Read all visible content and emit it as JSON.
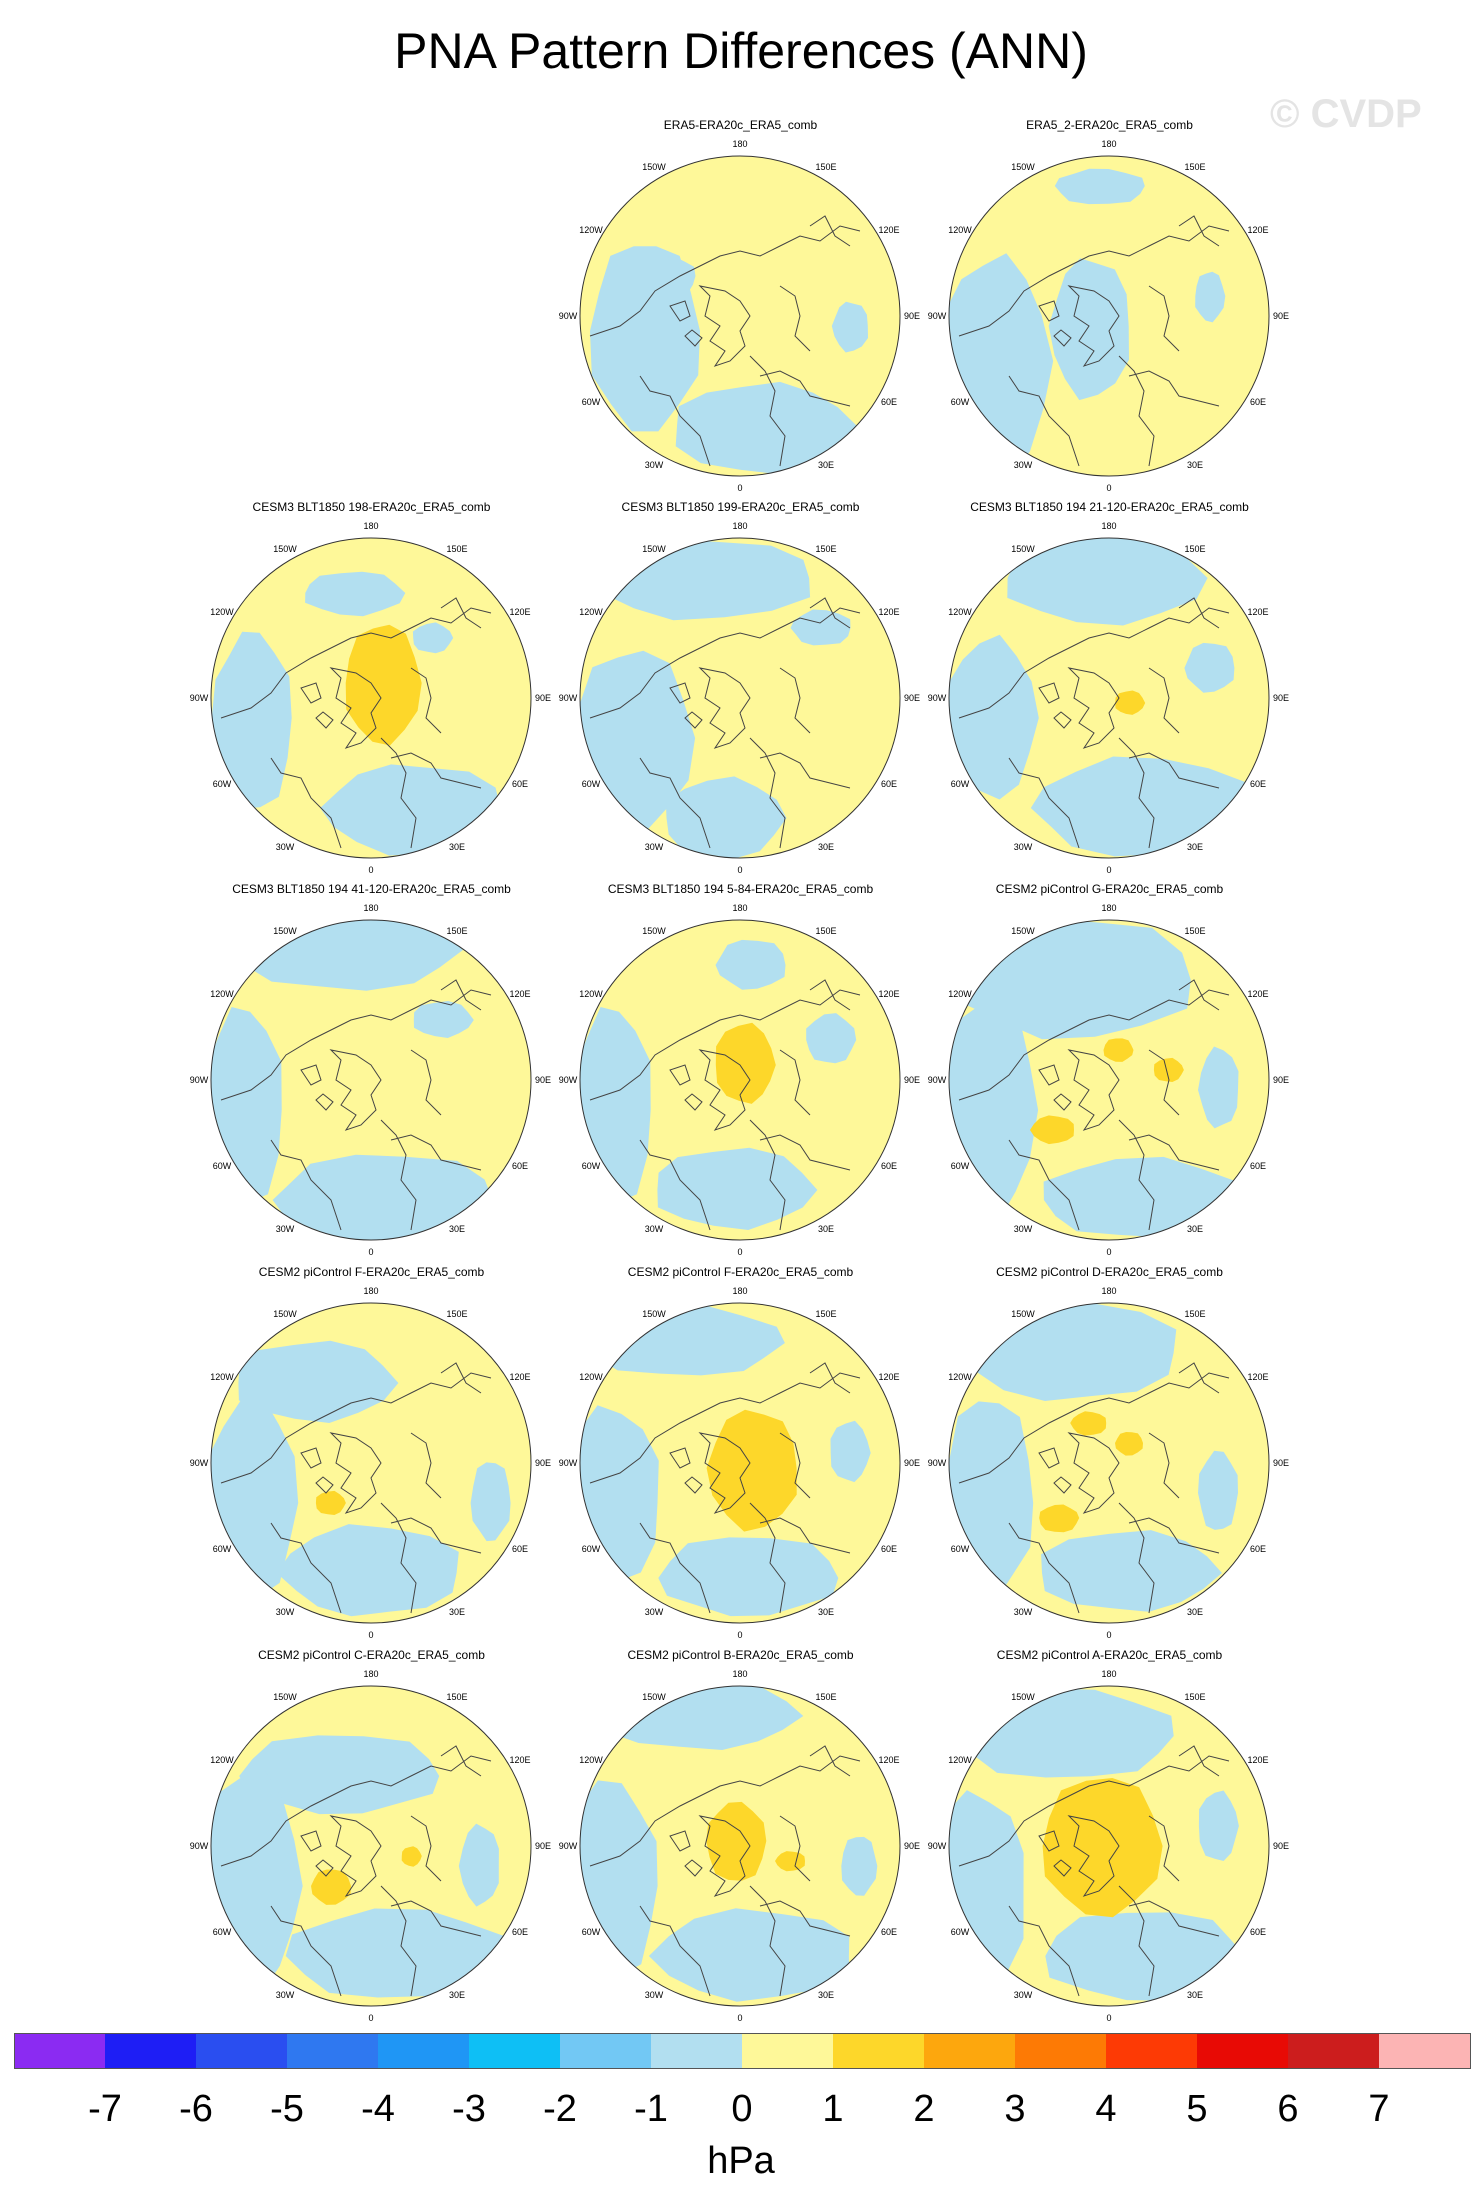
{
  "title": "PNA Pattern Differences (ANN)",
  "watermark": "© CVDP",
  "units": "hPa",
  "colors": {
    "pos1": "#fef899",
    "neg1": "#b2dff0",
    "pos2": "#fdd72a",
    "neg2": "#72c8f4",
    "coast": "#444444",
    "outline": "#333333"
  },
  "panels": [
    {
      "label": "ERA5-ERA20c_ERA5_comb",
      "variant": 0
    },
    {
      "label": "ERA5_2-ERA20c_ERA5_comb",
      "variant": 1
    },
    {
      "label": "CESM3 BLT1850 198-ERA20c_ERA5_comb",
      "variant": 2
    },
    {
      "label": "CESM3 BLT1850 199-ERA20c_ERA5_comb",
      "variant": 3
    },
    {
      "label": "CESM3 BLT1850 194 21-120-ERA20c_ERA5_comb",
      "variant": 4
    },
    {
      "label": "CESM3 BLT1850 194 41-120-ERA20c_ERA5_comb",
      "variant": 5
    },
    {
      "label": "CESM3 BLT1850 194 5-84-ERA20c_ERA5_comb",
      "variant": 6
    },
    {
      "label": "CESM2 piControl G-ERA20c_ERA5_comb",
      "variant": 7
    },
    {
      "label": "CESM2 piControl F-ERA20c_ERA5_comb",
      "variant": 8
    },
    {
      "label": "CESM2 piControl F-ERA20c_ERA5_comb",
      "variant": 9
    },
    {
      "label": "CESM2 piControl D-ERA20c_ERA5_comb",
      "variant": 10
    },
    {
      "label": "CESM2 piControl C-ERA20c_ERA5_comb",
      "variant": 11
    },
    {
      "label": "CESM2 piControl B-ERA20c_ERA5_comb",
      "variant": 12
    },
    {
      "label": "CESM2 piControl A-ERA20c_ERA5_comb",
      "variant": 13
    }
  ],
  "lon_labels": [
    "180",
    "150E",
    "120E",
    "90E",
    "60E",
    "30E",
    "0",
    "30W",
    "60W",
    "90W",
    "120W",
    "150W"
  ],
  "colorbar": {
    "colors": [
      "#8b2bf2",
      "#1e1ef5",
      "#2a4ef0",
      "#2f78f0",
      "#1f96f5",
      "#0ebff5",
      "#72c8f4",
      "#b2dff0",
      "#fef899",
      "#fdd72a",
      "#fda70d",
      "#fd7a05",
      "#fd3a05",
      "#e80a05",
      "#cc1d1d",
      "#fcb4b4"
    ],
    "ticks": [
      "-7",
      "-6",
      "-5",
      "-4",
      "-3",
      "-2",
      "-1",
      "0",
      "1",
      "2",
      "3",
      "4",
      "5",
      "6",
      "7"
    ]
  }
}
